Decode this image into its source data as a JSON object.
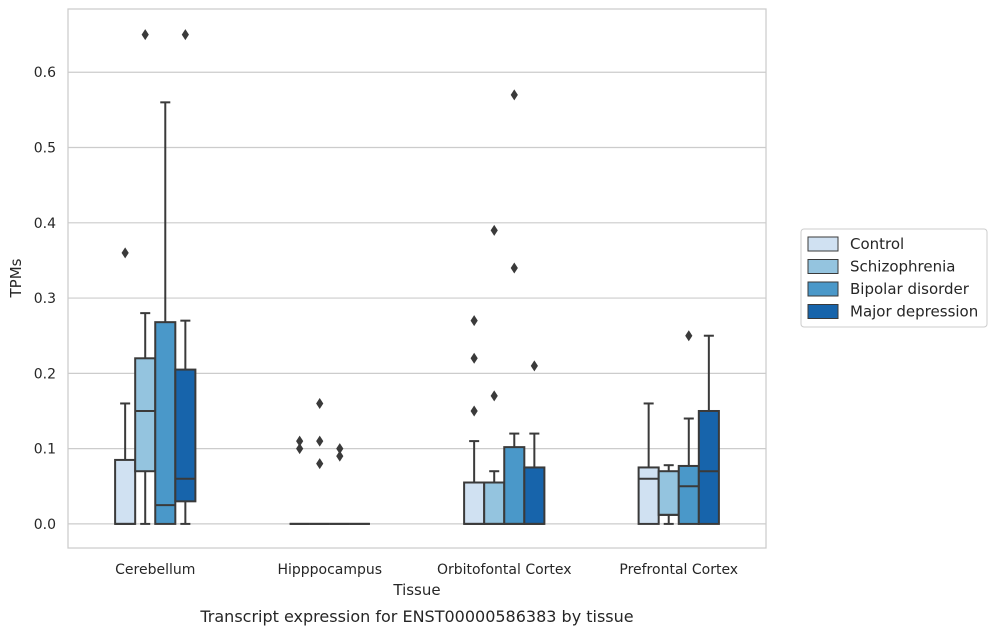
{
  "chart_data": {
    "type": "box",
    "xlabel": "Tissue",
    "ylabel": "TPMs",
    "caption": "Transcript expression for ENST00000586383 by tissue",
    "ylim": [
      -0.032,
      0.684
    ],
    "yticks": [
      0.0,
      0.1,
      0.2,
      0.3,
      0.4,
      0.5,
      0.6
    ],
    "ytick_labels": [
      "0.0",
      "0.1",
      "0.2",
      "0.3",
      "0.4",
      "0.5",
      "0.6"
    ],
    "grid": "horizontal",
    "legend_position": "right",
    "categories": [
      "Cerebellum",
      "Hipppocampus",
      "Orbitofontal Cortex",
      "Prefrontal Cortex"
    ],
    "series": [
      {
        "name": "Control",
        "color": "#d0e1f2",
        "boxes": [
          {
            "whislo": 0.0,
            "q1": 0.0,
            "med": 0.0,
            "q3": 0.085,
            "whishi": 0.16,
            "fliers": [
              0.36
            ]
          },
          {
            "whislo": 0.0,
            "q1": 0.0,
            "med": 0.0,
            "q3": 0.0,
            "whishi": 0.0,
            "fliers": [
              0.1,
              0.11
            ]
          },
          {
            "whislo": 0.0,
            "q1": 0.0,
            "med": 0.0,
            "q3": 0.055,
            "whishi": 0.11,
            "fliers": [
              0.15,
              0.22,
              0.27
            ]
          },
          {
            "whislo": 0.0,
            "q1": 0.0,
            "med": 0.06,
            "q3": 0.075,
            "whishi": 0.16,
            "fliers": []
          }
        ]
      },
      {
        "name": "Schizophrenia",
        "color": "#94c4df",
        "boxes": [
          {
            "whislo": 0.0,
            "q1": 0.07,
            "med": 0.15,
            "q3": 0.22,
            "whishi": 0.28,
            "fliers": [
              0.65
            ]
          },
          {
            "whislo": 0.0,
            "q1": 0.0,
            "med": 0.0,
            "q3": 0.0,
            "whishi": 0.0,
            "fliers": [
              0.08,
              0.11,
              0.16
            ]
          },
          {
            "whislo": 0.0,
            "q1": 0.0,
            "med": 0.0,
            "q3": 0.055,
            "whishi": 0.07,
            "fliers": [
              0.17,
              0.39
            ]
          },
          {
            "whislo": 0.0,
            "q1": 0.012,
            "med": 0.012,
            "q3": 0.07,
            "whishi": 0.078,
            "fliers": []
          }
        ]
      },
      {
        "name": "Bipolar disorder",
        "color": "#4a98c9",
        "boxes": [
          {
            "whislo": 0.0,
            "q1": 0.0,
            "med": 0.025,
            "q3": 0.268,
            "whishi": 0.56,
            "fliers": []
          },
          {
            "whislo": 0.0,
            "q1": 0.0,
            "med": 0.0,
            "q3": 0.0,
            "whishi": 0.0,
            "fliers": [
              0.09,
              0.1
            ]
          },
          {
            "whislo": 0.0,
            "q1": 0.0,
            "med": 0.0,
            "q3": 0.102,
            "whishi": 0.12,
            "fliers": [
              0.34,
              0.57
            ]
          },
          {
            "whislo": 0.0,
            "q1": 0.0,
            "med": 0.05,
            "q3": 0.077,
            "whishi": 0.14,
            "fliers": [
              0.25
            ]
          }
        ]
      },
      {
        "name": "Major depression",
        "color": "#1764ab",
        "boxes": [
          {
            "whislo": 0.0,
            "q1": 0.03,
            "med": 0.06,
            "q3": 0.205,
            "whishi": 0.27,
            "fliers": [
              0.65
            ]
          },
          {
            "whislo": 0.0,
            "q1": 0.0,
            "med": 0.0,
            "q3": 0.0,
            "whishi": 0.0,
            "fliers": []
          },
          {
            "whislo": 0.0,
            "q1": 0.0,
            "med": 0.0,
            "q3": 0.075,
            "whishi": 0.12,
            "fliers": [
              0.21
            ]
          },
          {
            "whislo": 0.0,
            "q1": 0.0,
            "med": 0.07,
            "q3": 0.15,
            "whishi": 0.25,
            "fliers": []
          }
        ]
      }
    ]
  }
}
